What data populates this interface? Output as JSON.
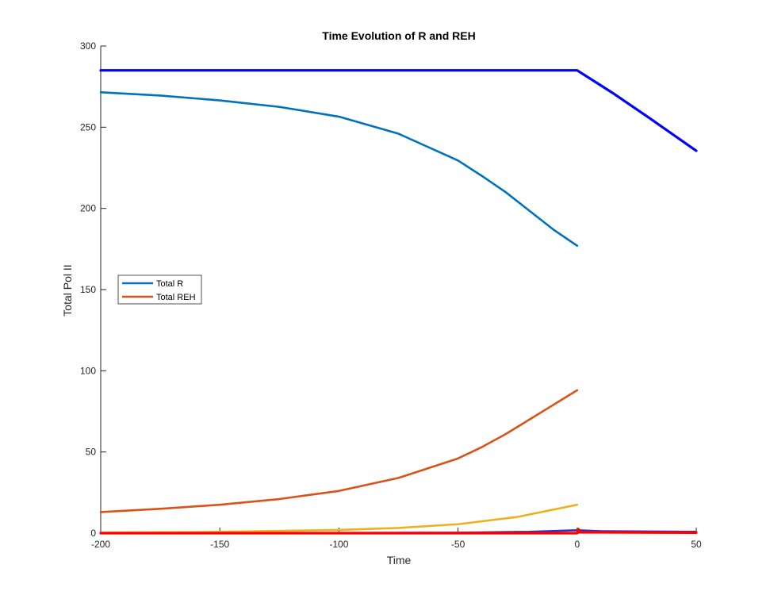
{
  "chart_data": {
    "type": "line",
    "title": "Time Evolution of R and REH",
    "xlabel": "Time",
    "ylabel": "Total Pol II",
    "xlim": [
      -200,
      50
    ],
    "ylim": [
      0,
      300
    ],
    "xticks": [
      -200,
      -150,
      -100,
      -50,
      0,
      50
    ],
    "yticks": [
      0,
      50,
      100,
      150,
      200,
      250,
      300
    ],
    "grid": false,
    "legend": {
      "placement": "left-middle",
      "entries": [
        "Total R",
        "Total REH"
      ]
    },
    "series": [
      {
        "name": "Total R",
        "color": "#0072BD",
        "x": [
          -200,
          -175,
          -150,
          -125,
          -100,
          -75,
          -50,
          -40,
          -30,
          -20,
          -10,
          0
        ],
        "y": [
          271.5,
          269.5,
          266.5,
          262.5,
          256.5,
          246,
          229.5,
          220,
          210,
          198.5,
          187,
          177
        ]
      },
      {
        "name": "Total REH",
        "color": "#D95319",
        "x": [
          -200,
          -175,
          -150,
          -125,
          -100,
          -75,
          -50,
          -40,
          -30,
          -20,
          -10,
          0
        ],
        "y": [
          13,
          15,
          17.5,
          21,
          26,
          34,
          46,
          53,
          61,
          70,
          79,
          88
        ]
      },
      {
        "color": "#EDB120",
        "x": [
          -200,
          -150,
          -100,
          -75,
          -50,
          -25,
          0
        ],
        "y": [
          0.3,
          0.8,
          2,
          3.2,
          5.5,
          10,
          17.5
        ]
      },
      {
        "color": "#0000FF",
        "x": [
          -200,
          0,
          15,
          30,
          50
        ],
        "y": [
          285,
          285,
          271,
          256,
          235.5
        ]
      },
      {
        "color": "#3030C0",
        "x": [
          -200,
          -100,
          -50,
          -20,
          0,
          10,
          50
        ],
        "y": [
          0,
          0.1,
          0.3,
          0.8,
          1.8,
          1.2,
          0.8
        ]
      },
      {
        "color": "#FF0000",
        "x": [
          -200,
          -100,
          0,
          0.5,
          1,
          2,
          5,
          10,
          50
        ],
        "y": [
          0,
          0,
          0,
          2.5,
          1,
          0.5,
          0.5,
          0.5,
          0.3
        ]
      }
    ]
  }
}
